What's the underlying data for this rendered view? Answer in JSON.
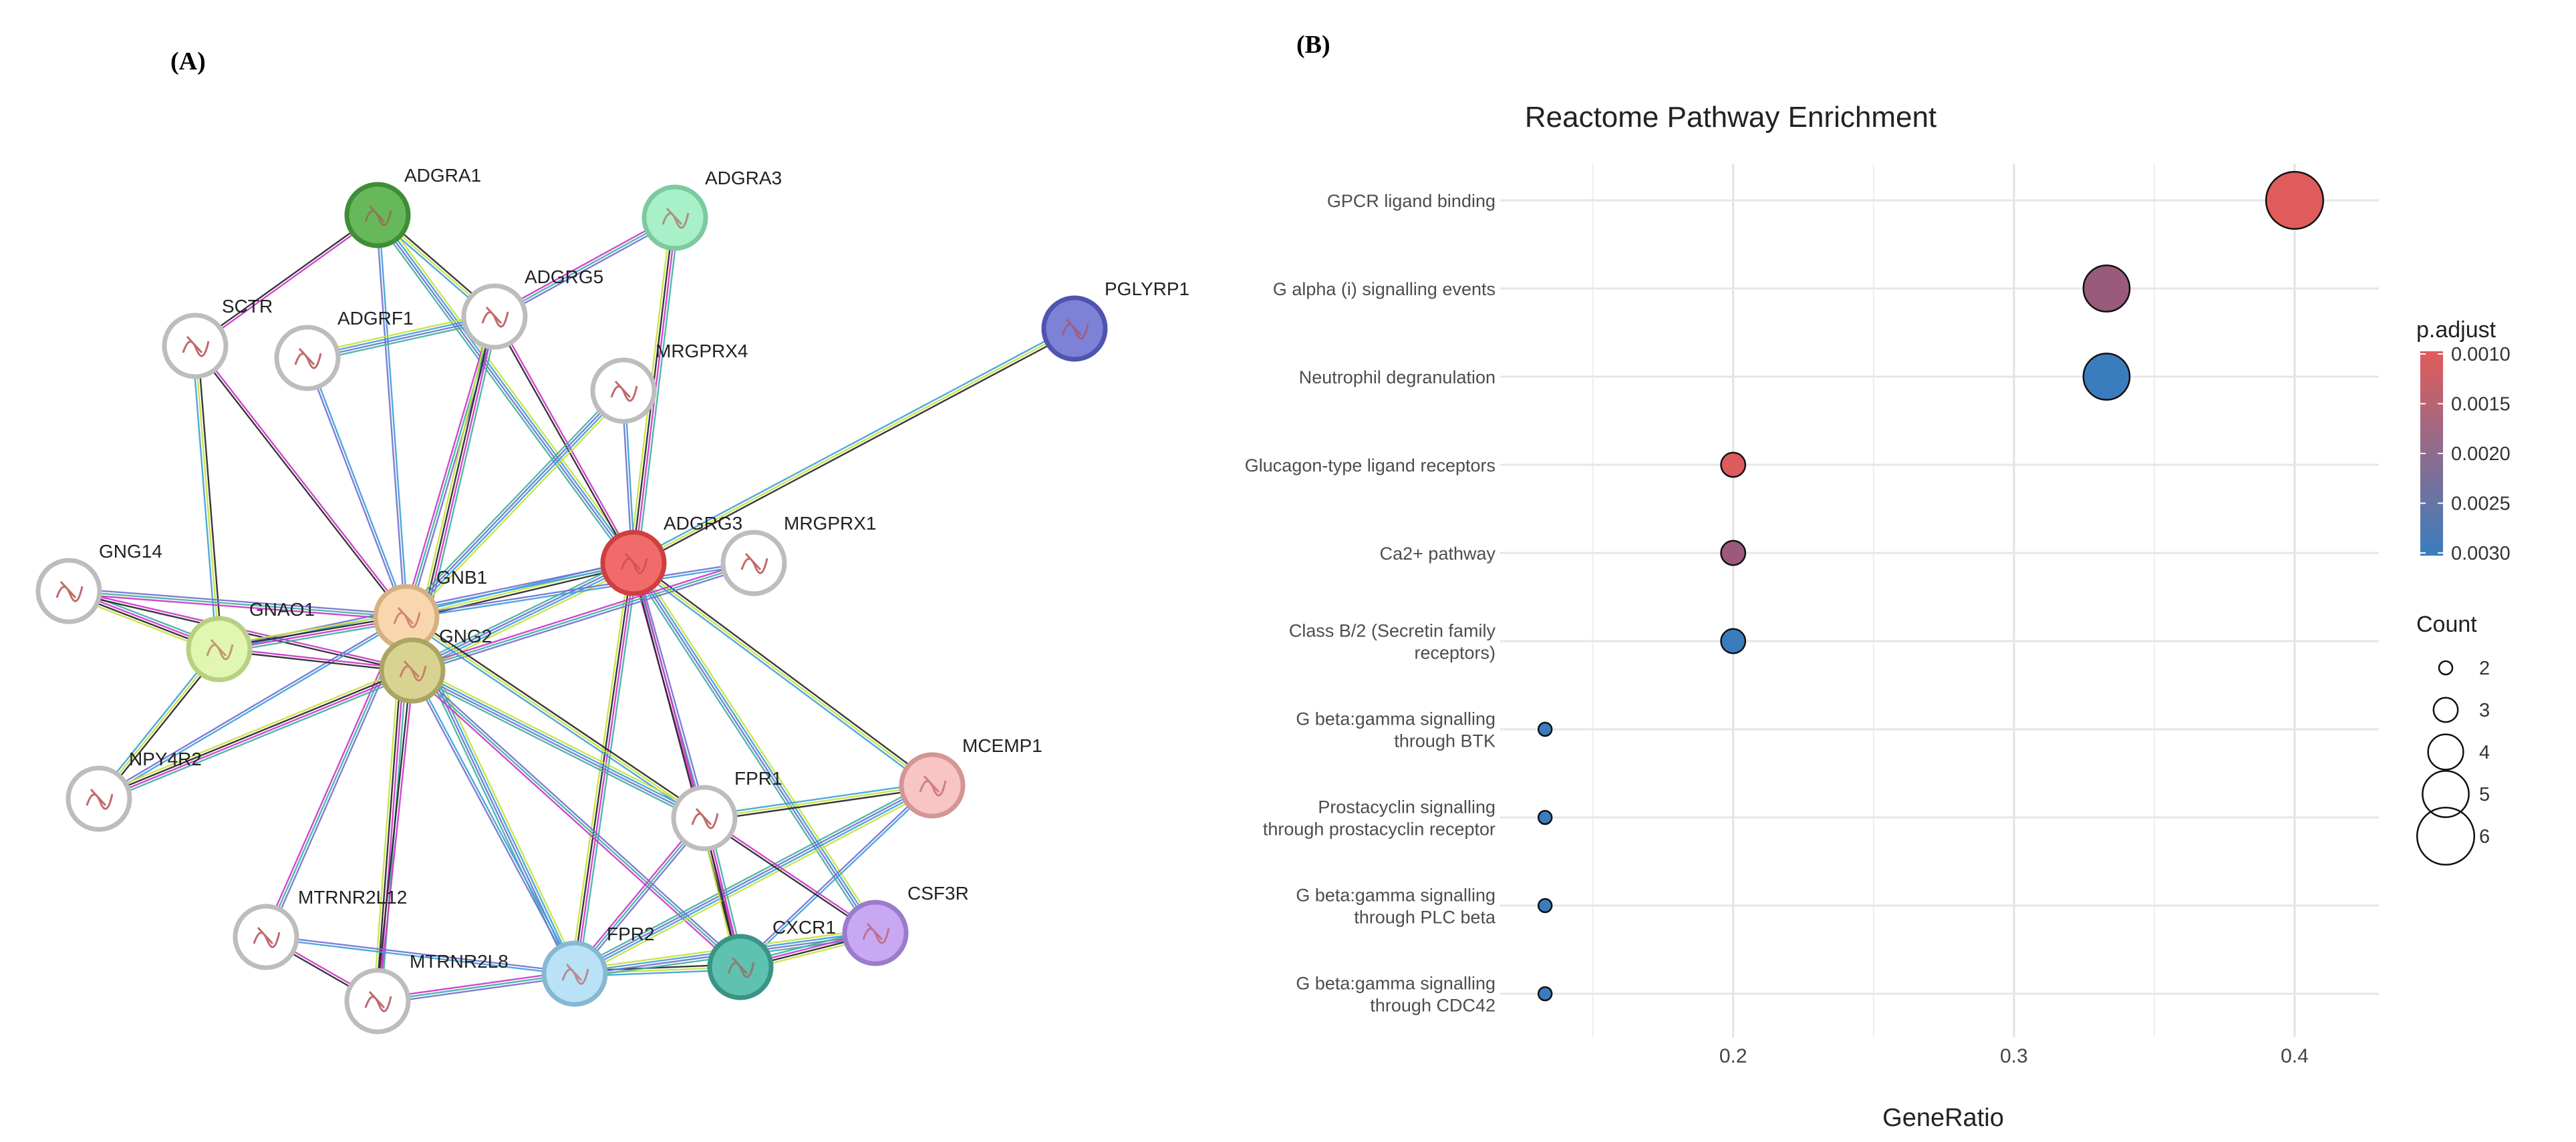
{
  "panel_labels": {
    "a": "(A)",
    "b": "(B)"
  },
  "network": {
    "nodes": [
      {
        "id": "ADGRA1",
        "color": "#67b85b",
        "ring": "#3e8e35"
      },
      {
        "id": "ADGRA3",
        "color": "#a8f0c8",
        "ring": "#7dc9a0"
      },
      {
        "id": "SCTR",
        "color": "#ffffff",
        "ring": "#bdbdbd"
      },
      {
        "id": "ADGRF1",
        "color": "#ffffff",
        "ring": "#bdbdbd"
      },
      {
        "id": "ADGRG5",
        "color": "#ffffff",
        "ring": "#bdbdbd"
      },
      {
        "id": "PGLYRP1",
        "color": "#7e82d6",
        "ring": "#4f54b0"
      },
      {
        "id": "MRGPRX4",
        "color": "#ffffff",
        "ring": "#bdbdbd"
      },
      {
        "id": "GNG14",
        "color": "#ffffff",
        "ring": "#bdbdbd"
      },
      {
        "id": "ADGRG3",
        "color": "#f26b6b",
        "ring": "#cf3f3f"
      },
      {
        "id": "MRGPRX1",
        "color": "#ffffff",
        "ring": "#bdbdbd"
      },
      {
        "id": "GNB1",
        "color": "#f9d7ae",
        "ring": "#d6b080"
      },
      {
        "id": "GNAO1",
        "color": "#e1f6b0",
        "ring": "#b7d084"
      },
      {
        "id": "GNG2",
        "color": "#d9d392",
        "ring": "#aaa563"
      },
      {
        "id": "NPY4R2",
        "color": "#ffffff",
        "ring": "#bdbdbd"
      },
      {
        "id": "MCEMP1",
        "color": "#f8c4c4",
        "ring": "#d39595"
      },
      {
        "id": "FPR1",
        "color": "#ffffff",
        "ring": "#bdbdbd"
      },
      {
        "id": "MTRNR2L12",
        "color": "#ffffff",
        "ring": "#bdbdbd"
      },
      {
        "id": "CSF3R",
        "color": "#c8a8f2",
        "ring": "#9b7bcb"
      },
      {
        "id": "CXCR1",
        "color": "#5fc1b0",
        "ring": "#3a9485"
      },
      {
        "id": "FPR2",
        "color": "#b9e2f6",
        "ring": "#86b8d2"
      },
      {
        "id": "MTRNR2L8",
        "color": "#ffffff",
        "ring": "#bdbdbd"
      }
    ],
    "edges": [
      [
        "ADGRA1",
        "SCTR"
      ],
      [
        "ADGRA1",
        "ADGRG5"
      ],
      [
        "ADGRA1",
        "ADGRG3"
      ],
      [
        "ADGRA1",
        "GNB1"
      ],
      [
        "ADGRA3",
        "ADGRG5"
      ],
      [
        "ADGRA3",
        "ADGRG3"
      ],
      [
        "SCTR",
        "GNB1"
      ],
      [
        "SCTR",
        "GNAO1"
      ],
      [
        "ADGRF1",
        "ADGRG5"
      ],
      [
        "ADGRF1",
        "GNB1"
      ],
      [
        "ADGRG5",
        "GNB1"
      ],
      [
        "ADGRG5",
        "GNG2"
      ],
      [
        "ADGRG5",
        "ADGRG3"
      ],
      [
        "PGLYRP1",
        "ADGRG3"
      ],
      [
        "MRGPRX4",
        "GNB1"
      ],
      [
        "MRGPRX4",
        "ADGRG3"
      ],
      [
        "GNG14",
        "GNB1"
      ],
      [
        "GNG14",
        "GNAO1"
      ],
      [
        "GNG14",
        "GNG2"
      ],
      [
        "ADGRG3",
        "GNB1"
      ],
      [
        "ADGRG3",
        "GNG2"
      ],
      [
        "ADGRG3",
        "GNAO1"
      ],
      [
        "ADGRG3",
        "FPR1"
      ],
      [
        "ADGRG3",
        "FPR2"
      ],
      [
        "ADGRG3",
        "CXCR1"
      ],
      [
        "ADGRG3",
        "MCEMP1"
      ],
      [
        "ADGRG3",
        "CSF3R"
      ],
      [
        "MRGPRX1",
        "GNB1"
      ],
      [
        "MRGPRX1",
        "GNG2"
      ],
      [
        "GNB1",
        "GNAO1"
      ],
      [
        "GNB1",
        "GNG2"
      ],
      [
        "GNB1",
        "FPR1"
      ],
      [
        "GNB1",
        "FPR2"
      ],
      [
        "GNB1",
        "NPY4R2"
      ],
      [
        "GNB1",
        "MTRNR2L12"
      ],
      [
        "GNB1",
        "MTRNR2L8"
      ],
      [
        "GNAO1",
        "GNG2"
      ],
      [
        "GNAO1",
        "NPY4R2"
      ],
      [
        "GNG2",
        "FPR1"
      ],
      [
        "GNG2",
        "FPR2"
      ],
      [
        "GNG2",
        "CXCR1"
      ],
      [
        "GNG2",
        "NPY4R2"
      ],
      [
        "GNG2",
        "MTRNR2L8"
      ],
      [
        "MCEMP1",
        "FPR1"
      ],
      [
        "MCEMP1",
        "FPR2"
      ],
      [
        "MCEMP1",
        "CXCR1"
      ],
      [
        "FPR1",
        "FPR2"
      ],
      [
        "FPR1",
        "CXCR1"
      ],
      [
        "FPR1",
        "CSF3R"
      ],
      [
        "FPR2",
        "CXCR1"
      ],
      [
        "FPR2",
        "CSF3R"
      ],
      [
        "FPR2",
        "MTRNR2L12"
      ],
      [
        "FPR2",
        "MTRNR2L8"
      ],
      [
        "CXCR1",
        "CSF3R"
      ],
      [
        "MTRNR2L12",
        "MTRNR2L8"
      ]
    ]
  },
  "chart_data": {
    "type": "scatter",
    "title": "Reactome Pathway Enrichment",
    "xlabel": "GeneRatio",
    "ylabel": "",
    "xlim": [
      0.117,
      0.43
    ],
    "x_ticks": [
      0.2,
      0.3,
      0.4
    ],
    "x_tick_labels": [
      "0.2",
      "0.3",
      "0.4"
    ],
    "grid": true,
    "categories": [
      "GPCR ligand binding",
      "G alpha (i) signalling events",
      "Neutrophil degranulation",
      "Glucagon-type ligand receptors",
      "Ca2+ pathway",
      "Class B/2 (Secretin family receptors)",
      "G beta:gamma signalling through BTK",
      "Prostacyclin signalling through prostacyclin receptor",
      "G beta:gamma signalling through PLC beta",
      "G beta:gamma signalling through CDC42"
    ],
    "category_lines": [
      [
        "GPCR ligand binding"
      ],
      [
        "G alpha (i) signalling events"
      ],
      [
        "Neutrophil degranulation"
      ],
      [
        "Glucagon-type ligand receptors"
      ],
      [
        "Ca2+ pathway"
      ],
      [
        "Class B/2 (Secretin family",
        "receptors)"
      ],
      [
        "G beta:gamma signalling",
        "through BTK"
      ],
      [
        "Prostacyclin signalling",
        "through prostacyclin receptor"
      ],
      [
        "G beta:gamma signalling",
        "through PLC beta"
      ],
      [
        "G beta:gamma signalling",
        "through CDC42"
      ]
    ],
    "gene_ratio": [
      0.4,
      0.333,
      0.333,
      0.2,
      0.2,
      0.2,
      0.133,
      0.133,
      0.133,
      0.133
    ],
    "count": [
      6,
      5,
      5,
      3,
      3,
      3,
      2,
      2,
      2,
      2
    ],
    "p_adjust": [
      0.00102,
      0.00205,
      0.003,
      0.00108,
      0.00202,
      0.003,
      0.003,
      0.003,
      0.003,
      0.003
    ],
    "color_legend": {
      "title": "p.adjust",
      "range": [
        0.001,
        0.003
      ],
      "labels": [
        "0.0010",
        "0.0015",
        "0.0020",
        "0.0025",
        "0.0030"
      ],
      "low_color": "#e15b5b",
      "high_color": "#3a7dbf"
    },
    "size_legend": {
      "title": "Count",
      "values": [
        2,
        3,
        4,
        5,
        6
      ],
      "labels": [
        "2",
        "3",
        "4",
        "5",
        "6"
      ]
    },
    "legend_placement": "right"
  }
}
